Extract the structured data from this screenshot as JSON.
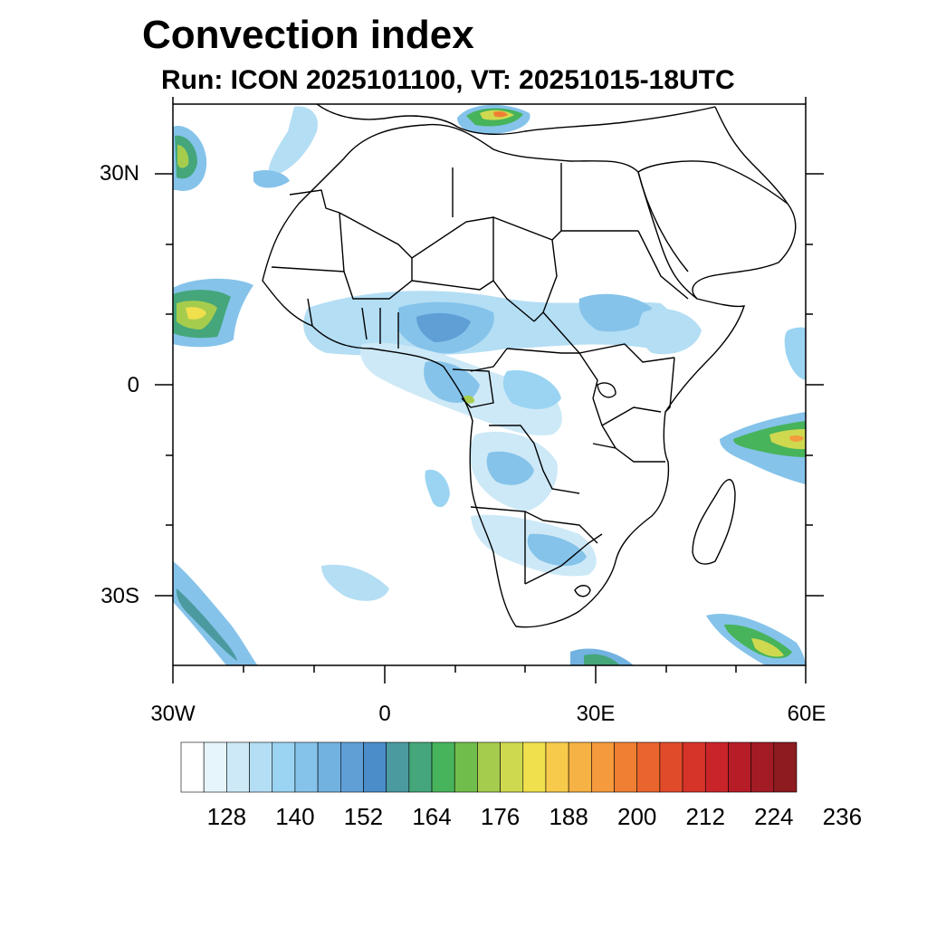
{
  "title": "Convection index",
  "subtitle": "Run: ICON 2025101100,  VT: 20251015-18UTC",
  "map": {
    "extent": {
      "lon_min": -30,
      "lon_max": 60,
      "lat_min": -40,
      "lat_max": 40
    },
    "lat_labels": [
      {
        "lat": 30,
        "text": "30N"
      },
      {
        "lat": 0,
        "text": "0"
      },
      {
        "lat": -30,
        "text": "30S"
      }
    ],
    "lon_labels": [
      {
        "lon": -30,
        "text": "30W"
      },
      {
        "lon": 0,
        "text": "0"
      },
      {
        "lon": 30,
        "text": "30E"
      },
      {
        "lon": 60,
        "text": "60E"
      }
    ]
  },
  "colorbar": {
    "colors": [
      "#ffffff",
      "#e6f4fb",
      "#cde9f7",
      "#b4def4",
      "#9ad4f2",
      "#85c3ea",
      "#72b2e1",
      "#5f9fd6",
      "#4a8dc9",
      "#4a9aa0",
      "#44a67a",
      "#47b35b",
      "#71bd4b",
      "#a6cc4e",
      "#cfd94f",
      "#f0e04d",
      "#f8ca4c",
      "#f6b245",
      "#f59a3d",
      "#f07f34",
      "#ea642e",
      "#e04b2a",
      "#d63429",
      "#c82429",
      "#b71d27",
      "#a31b24",
      "#8d1b20"
    ],
    "labels": [
      "128",
      "140",
      "152",
      "164",
      "176",
      "188",
      "200",
      "212",
      "224",
      "236"
    ]
  }
}
